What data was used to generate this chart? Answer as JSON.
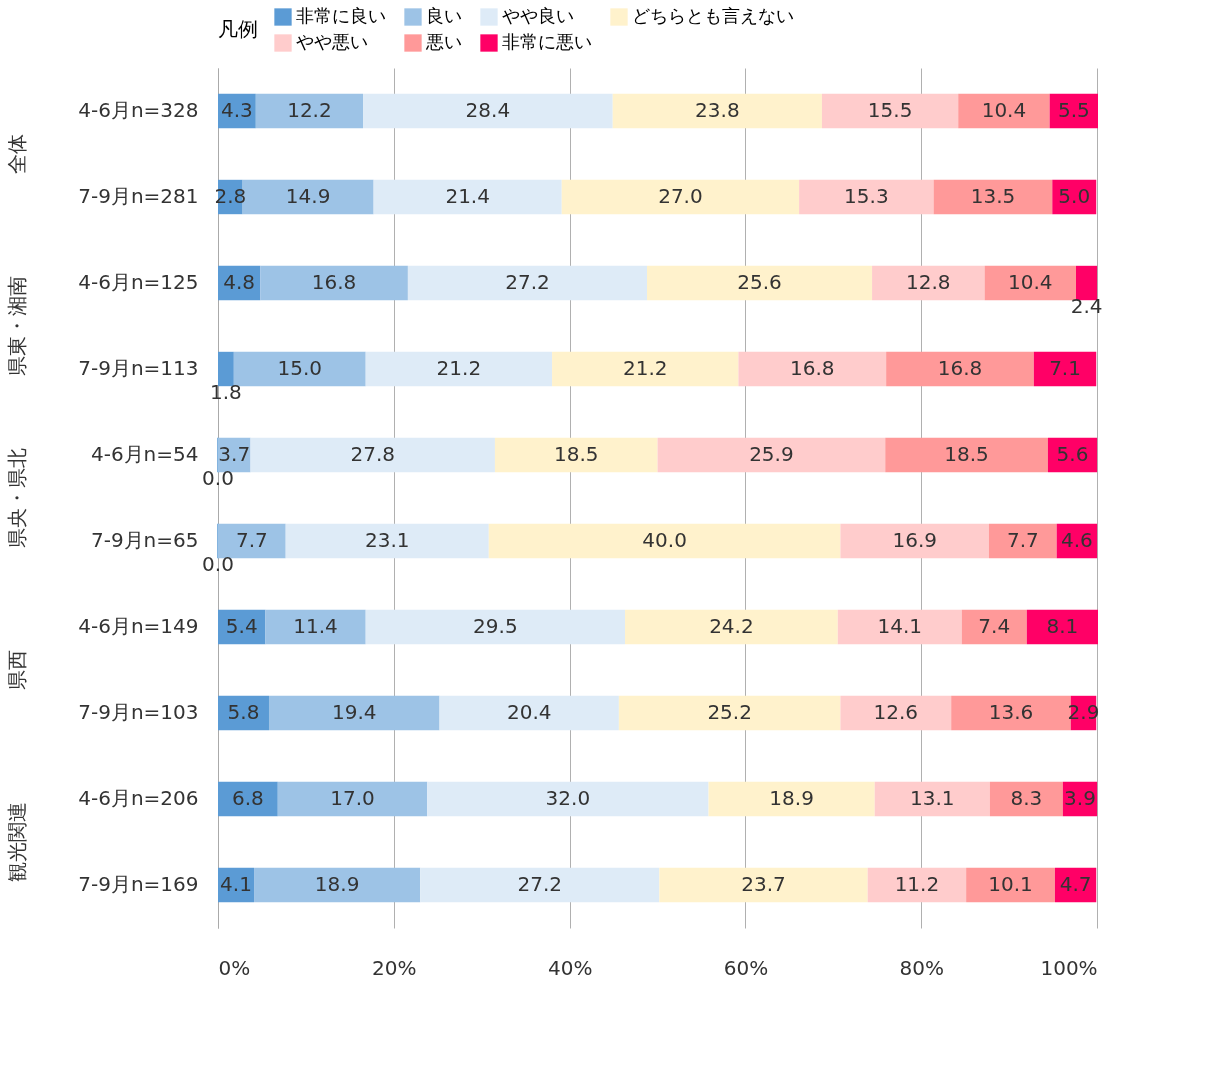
{
  "chart_data": {
    "type": "bar",
    "orientation": "horizontal",
    "stacked": true,
    "categories": [
      "4-6月n=328",
      "7-9月n=281",
      "4-6月n=125",
      "7-9月n=113",
      "4-6月n=54",
      "7-9月n=65",
      "4-6月n=149",
      "7-9月n=103",
      "4-6月n=206",
      "7-9月n=169"
    ],
    "series": [
      {
        "name": "非常に良い",
        "color": "#5b9bd5",
        "values": [
          4.3,
          2.8,
          4.8,
          1.8,
          0.0,
          0.0,
          5.4,
          5.8,
          6.8,
          4.1
        ],
        "value_labels": [
          "4.3",
          "2.8",
          "4.8",
          "1.8",
          "0.0",
          "0.0",
          "5.4",
          "5.8",
          "6.8",
          "4.1"
        ]
      },
      {
        "name": "良い",
        "color": "#9dc3e6",
        "values": [
          12.2,
          14.9,
          16.8,
          15.0,
          3.7,
          7.7,
          11.4,
          19.4,
          17.0,
          18.9
        ],
        "value_labels": [
          "12.2",
          "14.9",
          "16.8",
          "15.0",
          "3.7",
          "7.7",
          "11.4",
          "19.4",
          "17.0",
          "18.9"
        ]
      },
      {
        "name": "やや良い",
        "color": "#deebf7",
        "values": [
          28.4,
          21.4,
          27.2,
          21.2,
          27.8,
          23.1,
          29.5,
          20.4,
          32.0,
          27.2
        ],
        "value_labels": [
          "28.4",
          "21.4",
          "27.2",
          "21.2",
          "27.8",
          "23.1",
          "29.5",
          "20.4",
          "32.0",
          "27.2"
        ]
      },
      {
        "name": "どちらとも言えない",
        "color": "#fff2cc",
        "values": [
          23.8,
          27.0,
          25.6,
          21.2,
          18.5,
          40.0,
          24.2,
          25.2,
          18.9,
          23.7
        ],
        "value_labels": [
          "23.8",
          "27.0",
          "25.6",
          "21.2",
          "18.5",
          "40.0",
          "24.2",
          "25.2",
          "18.9",
          "23.7"
        ]
      },
      {
        "name": "やや悪い",
        "color": "#ffcccc",
        "values": [
          15.5,
          15.3,
          12.8,
          16.8,
          25.9,
          16.9,
          14.1,
          12.6,
          13.1,
          11.2
        ],
        "value_labels": [
          "15.5",
          "15.3",
          "12.8",
          "16.8",
          "25.9",
          "16.9",
          "14.1",
          "12.6",
          "13.1",
          "11.2"
        ]
      },
      {
        "name": "悪い",
        "color": "#ff9999",
        "values": [
          10.4,
          13.5,
          10.4,
          16.8,
          18.5,
          7.7,
          7.4,
          13.6,
          8.3,
          10.1
        ],
        "value_labels": [
          "10.4",
          "13.5",
          "10.4",
          "16.8",
          "18.5",
          "7.7",
          "7.4",
          "13.6",
          "8.3",
          "10.1"
        ]
      },
      {
        "name": "非常に悪い",
        "color": "#ff0066",
        "values": [
          5.5,
          5.0,
          2.4,
          7.1,
          5.6,
          4.6,
          8.1,
          2.9,
          3.9,
          4.7
        ],
        "value_labels": [
          "5.5",
          "5.0",
          "2.4",
          "7.1",
          "5.6",
          "4.6",
          "8.1",
          "2.9",
          "3.9",
          "4.7"
        ]
      }
    ],
    "xlim": [
      0,
      100.1
    ],
    "xticks": [
      {
        "value": 0,
        "label": "0%"
      },
      {
        "value": 20,
        "label": "20%"
      },
      {
        "value": 40,
        "label": "40%"
      },
      {
        "value": 60,
        "label": "60%"
      },
      {
        "value": 80,
        "label": "80%"
      },
      {
        "value": 100,
        "label": "100%"
      }
    ],
    "grid": "x",
    "legend": "top",
    "legend_title": "凡例",
    "annotations": [
      "全体",
      "県東・湘南",
      "県央・県北",
      "県西",
      "観光関連"
    ]
  }
}
